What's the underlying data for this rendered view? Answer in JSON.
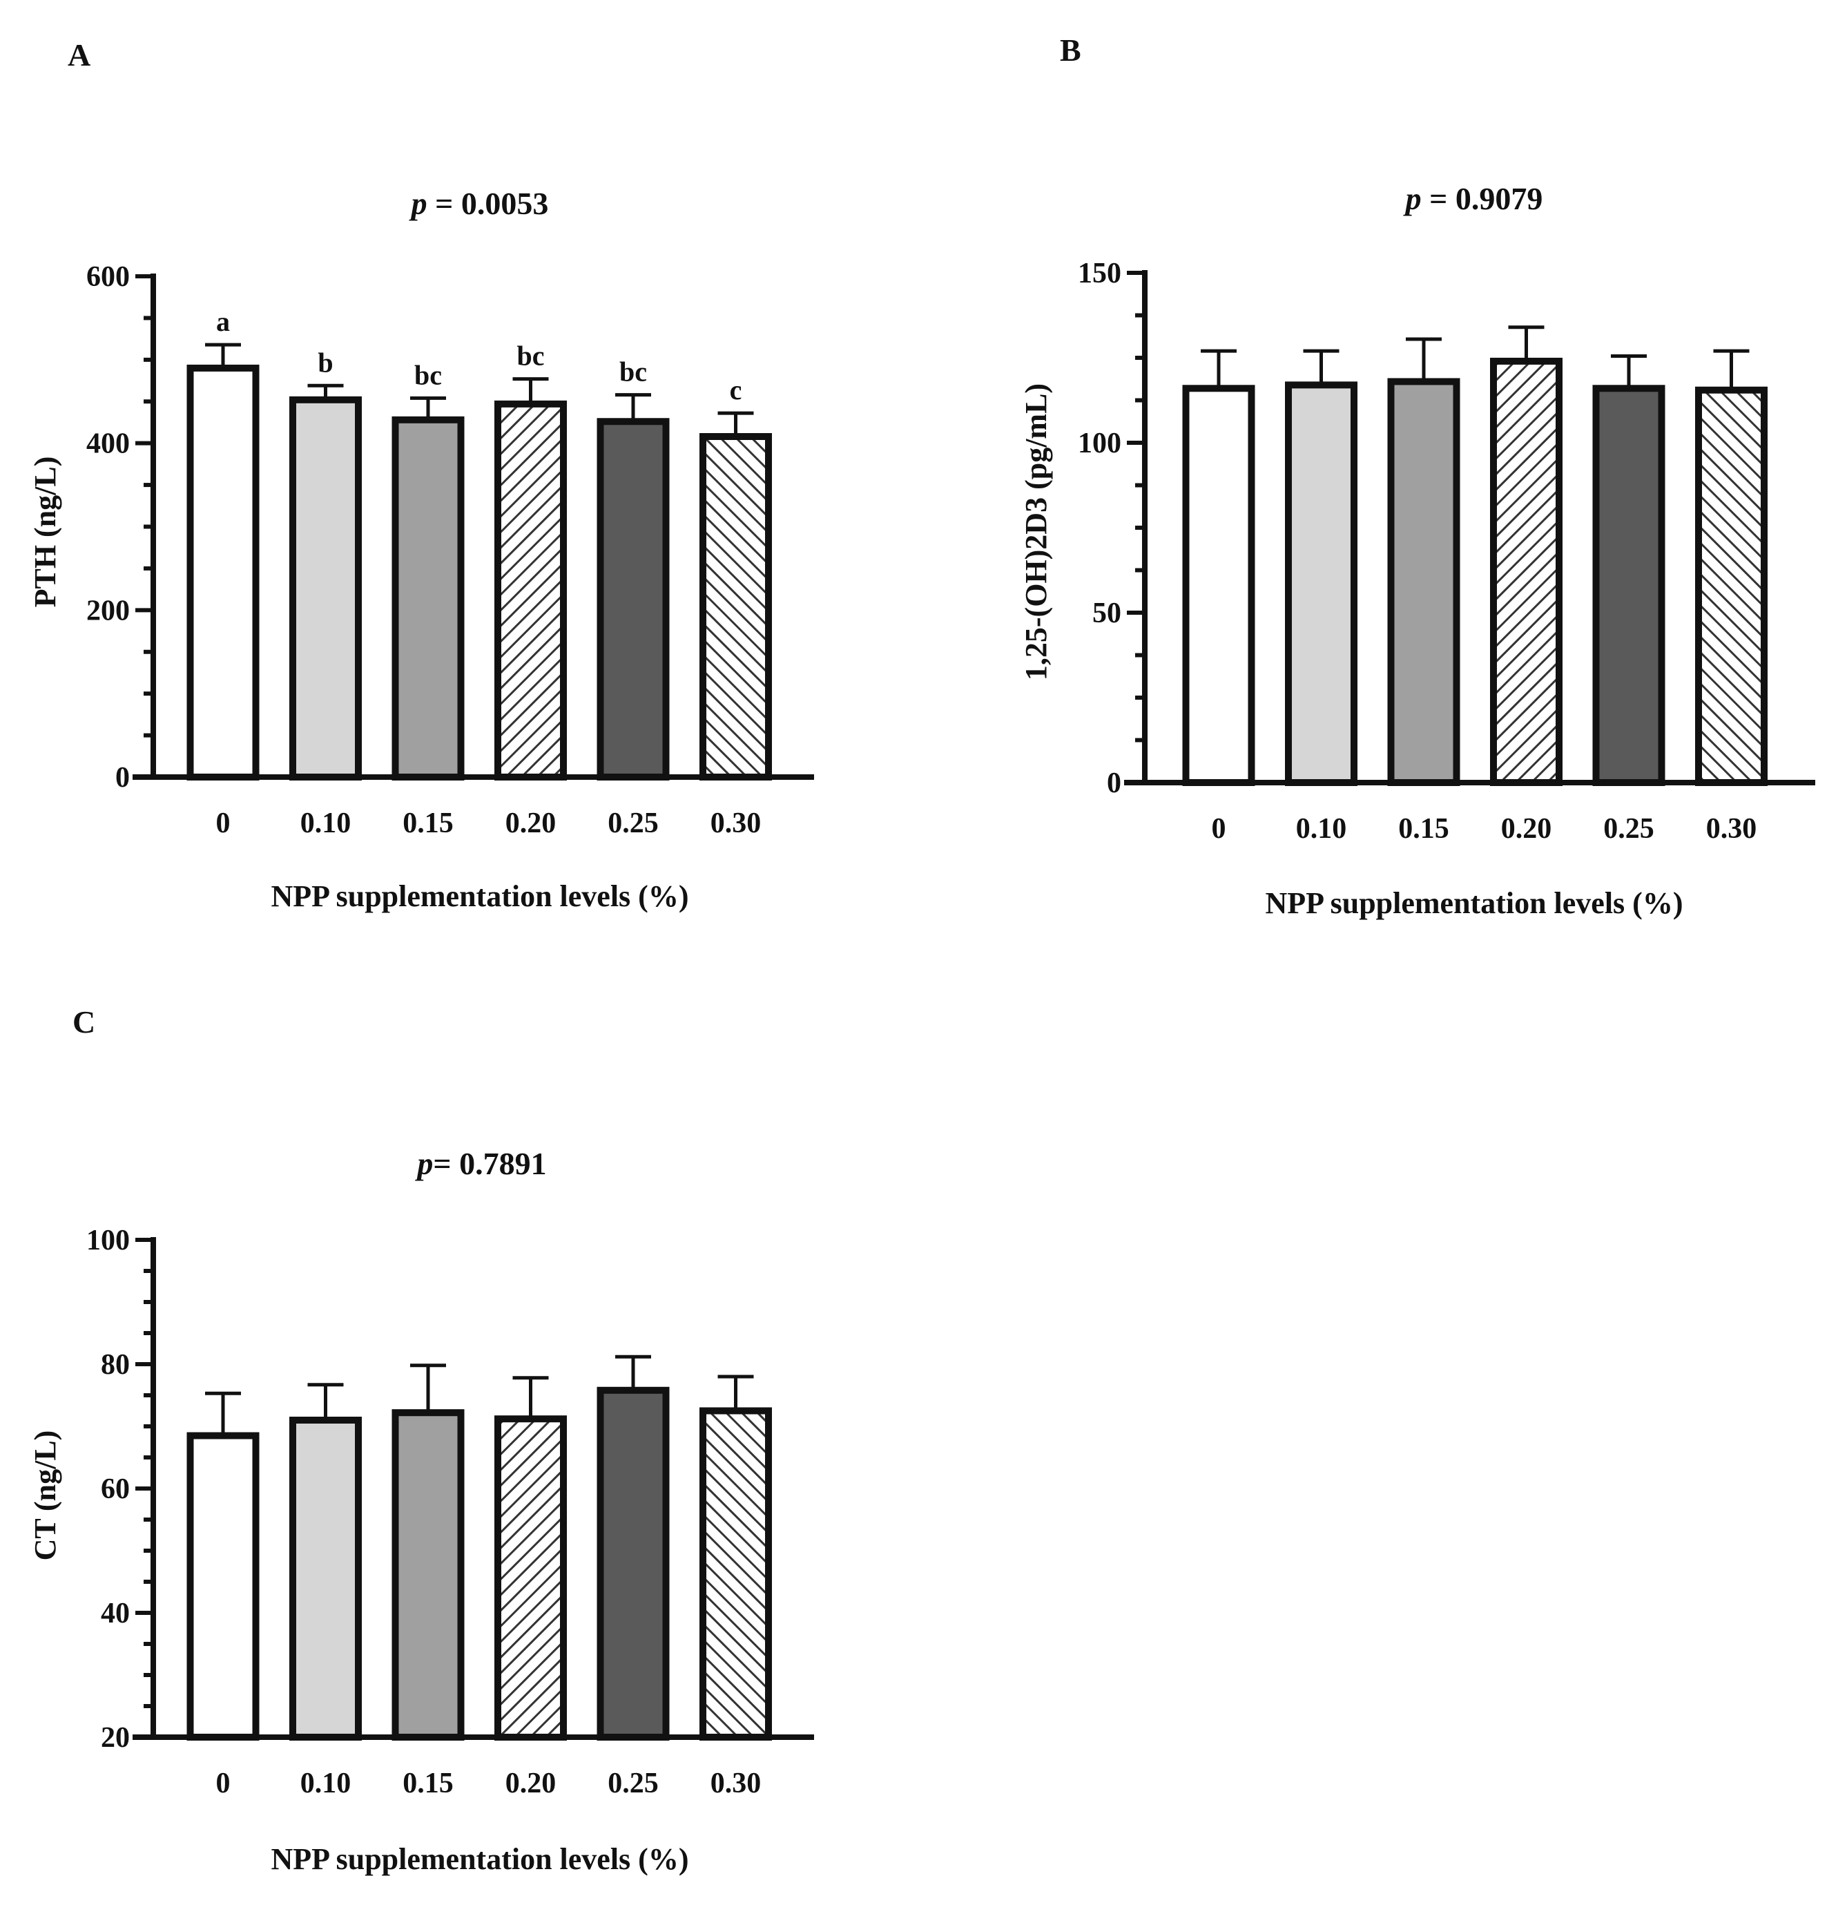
{
  "chart_data": [
    {
      "panel": "A",
      "type": "bar",
      "pvalue_prefix": "p",
      "pvalue_text": " = 0.0053",
      "xlabel": "NPP supplementation levels  (%)",
      "ylabel": "PTH (ng/L)",
      "ylim": [
        0,
        600
      ],
      "yticks": [
        "0",
        "200",
        "400",
        "600"
      ],
      "ytick_values": [
        0,
        200,
        400,
        600
      ],
      "categories": [
        "0",
        "0.10",
        "0.15",
        "0.20",
        "0.25",
        "0.30"
      ],
      "values": [
        490,
        452,
        428,
        447,
        426,
        408
      ],
      "errors": [
        28,
        17,
        26,
        30,
        32,
        28
      ],
      "letters": [
        "a",
        "b",
        "bc",
        "bc",
        "bc",
        "c"
      ]
    },
    {
      "panel": "B",
      "type": "bar",
      "pvalue_prefix": "p",
      "pvalue_text": " = 0.9079",
      "xlabel": "NPP supplementation levels  (%)",
      "ylabel": "1,25-(OH)2D3 (pg/mL)",
      "ylim": [
        0,
        150
      ],
      "yticks": [
        "0",
        "50",
        "100",
        "150"
      ],
      "ytick_values": [
        0,
        50,
        100,
        150
      ],
      "categories": [
        "0",
        "0.10",
        "0.15",
        "0.20",
        "0.25",
        "0.30"
      ],
      "values": [
        116,
        117,
        118,
        124,
        116,
        115.5
      ],
      "errors": [
        11,
        10,
        12.5,
        10,
        9.5,
        11.5
      ],
      "letters": []
    },
    {
      "panel": "C",
      "type": "bar",
      "pvalue_prefix": "p",
      "pvalue_text": "= 0.7891",
      "xlabel": "NPP supplementation levels  (%)",
      "ylabel": "CT (ng/L)",
      "ylim": [
        20,
        100
      ],
      "yticks": [
        "20",
        "40",
        "60",
        "80",
        "100"
      ],
      "ytick_values": [
        20,
        40,
        60,
        80,
        100
      ],
      "categories": [
        "0",
        "0.10",
        "0.15",
        "0.20",
        "0.25",
        "0.30"
      ],
      "values": [
        68.5,
        71,
        72.2,
        71.2,
        75.8,
        72.5
      ],
      "errors": [
        6.8,
        5.7,
        7.6,
        6.6,
        5.4,
        5.5
      ],
      "letters": []
    }
  ],
  "bar_styles": [
    {
      "fill": "#ffffff",
      "pattern": "none"
    },
    {
      "fill": "#d6d6d6",
      "pattern": "none"
    },
    {
      "fill": "#a0a0a0",
      "pattern": "none"
    },
    {
      "fill": "#ffffff",
      "pattern": "forward-hatch"
    },
    {
      "fill": "#5a5a5a",
      "pattern": "none"
    },
    {
      "fill": "#ffffff",
      "pattern": "back-hatch"
    }
  ]
}
